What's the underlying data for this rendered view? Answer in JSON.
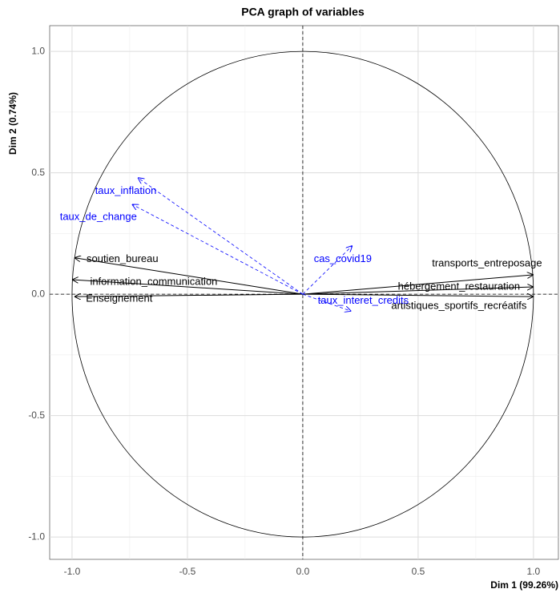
{
  "chart_data": {
    "type": "pca_variables",
    "title": "PCA graph of variables",
    "x_label": "Dim 1 (99.26%)",
    "y_label": "Dim 2 (0.74%)",
    "xlim": [
      -1.097,
      1.108
    ],
    "ylim": [
      -1.092,
      1.106
    ],
    "xticks": [
      {
        "value": -1,
        "label": "-1.0"
      },
      -0.5,
      {
        "value": 0,
        "label": "0.0"
      },
      0.5,
      {
        "value": 1,
        "label": "1.0"
      }
    ],
    "yticks": [
      {
        "value": -1,
        "label": "-1.0"
      },
      -0.5,
      {
        "value": 0,
        "label": "0.0"
      },
      0.5,
      {
        "value": 1,
        "label": "1.0"
      }
    ],
    "grid": true,
    "series": [
      {
        "color": "#000000",
        "line_style": "solid",
        "labels": [
          "transports_entreposage",
          "hébergement_restauration",
          "artistiques_sportifs_recréatifs",
          "soutien_bureau",
          "information_communication",
          "Enseignement"
        ],
        "x": [
          1.0,
          1.0,
          1.0,
          -0.99,
          -1.0,
          -0.99
        ],
        "values": [
          0.08,
          0.03,
          -0.01,
          0.15,
          0.06,
          -0.01
        ]
      },
      {
        "color": "#0000ff",
        "line_style": "dashed",
        "labels": [
          "taux_inflation",
          "taux_de_change",
          "cas_covid19",
          "taux_interet_credits"
        ],
        "x": [
          -0.715,
          -0.74,
          0.215,
          0.21
        ],
        "values": [
          0.48,
          0.37,
          0.2,
          -0.07
        ]
      }
    ]
  }
}
